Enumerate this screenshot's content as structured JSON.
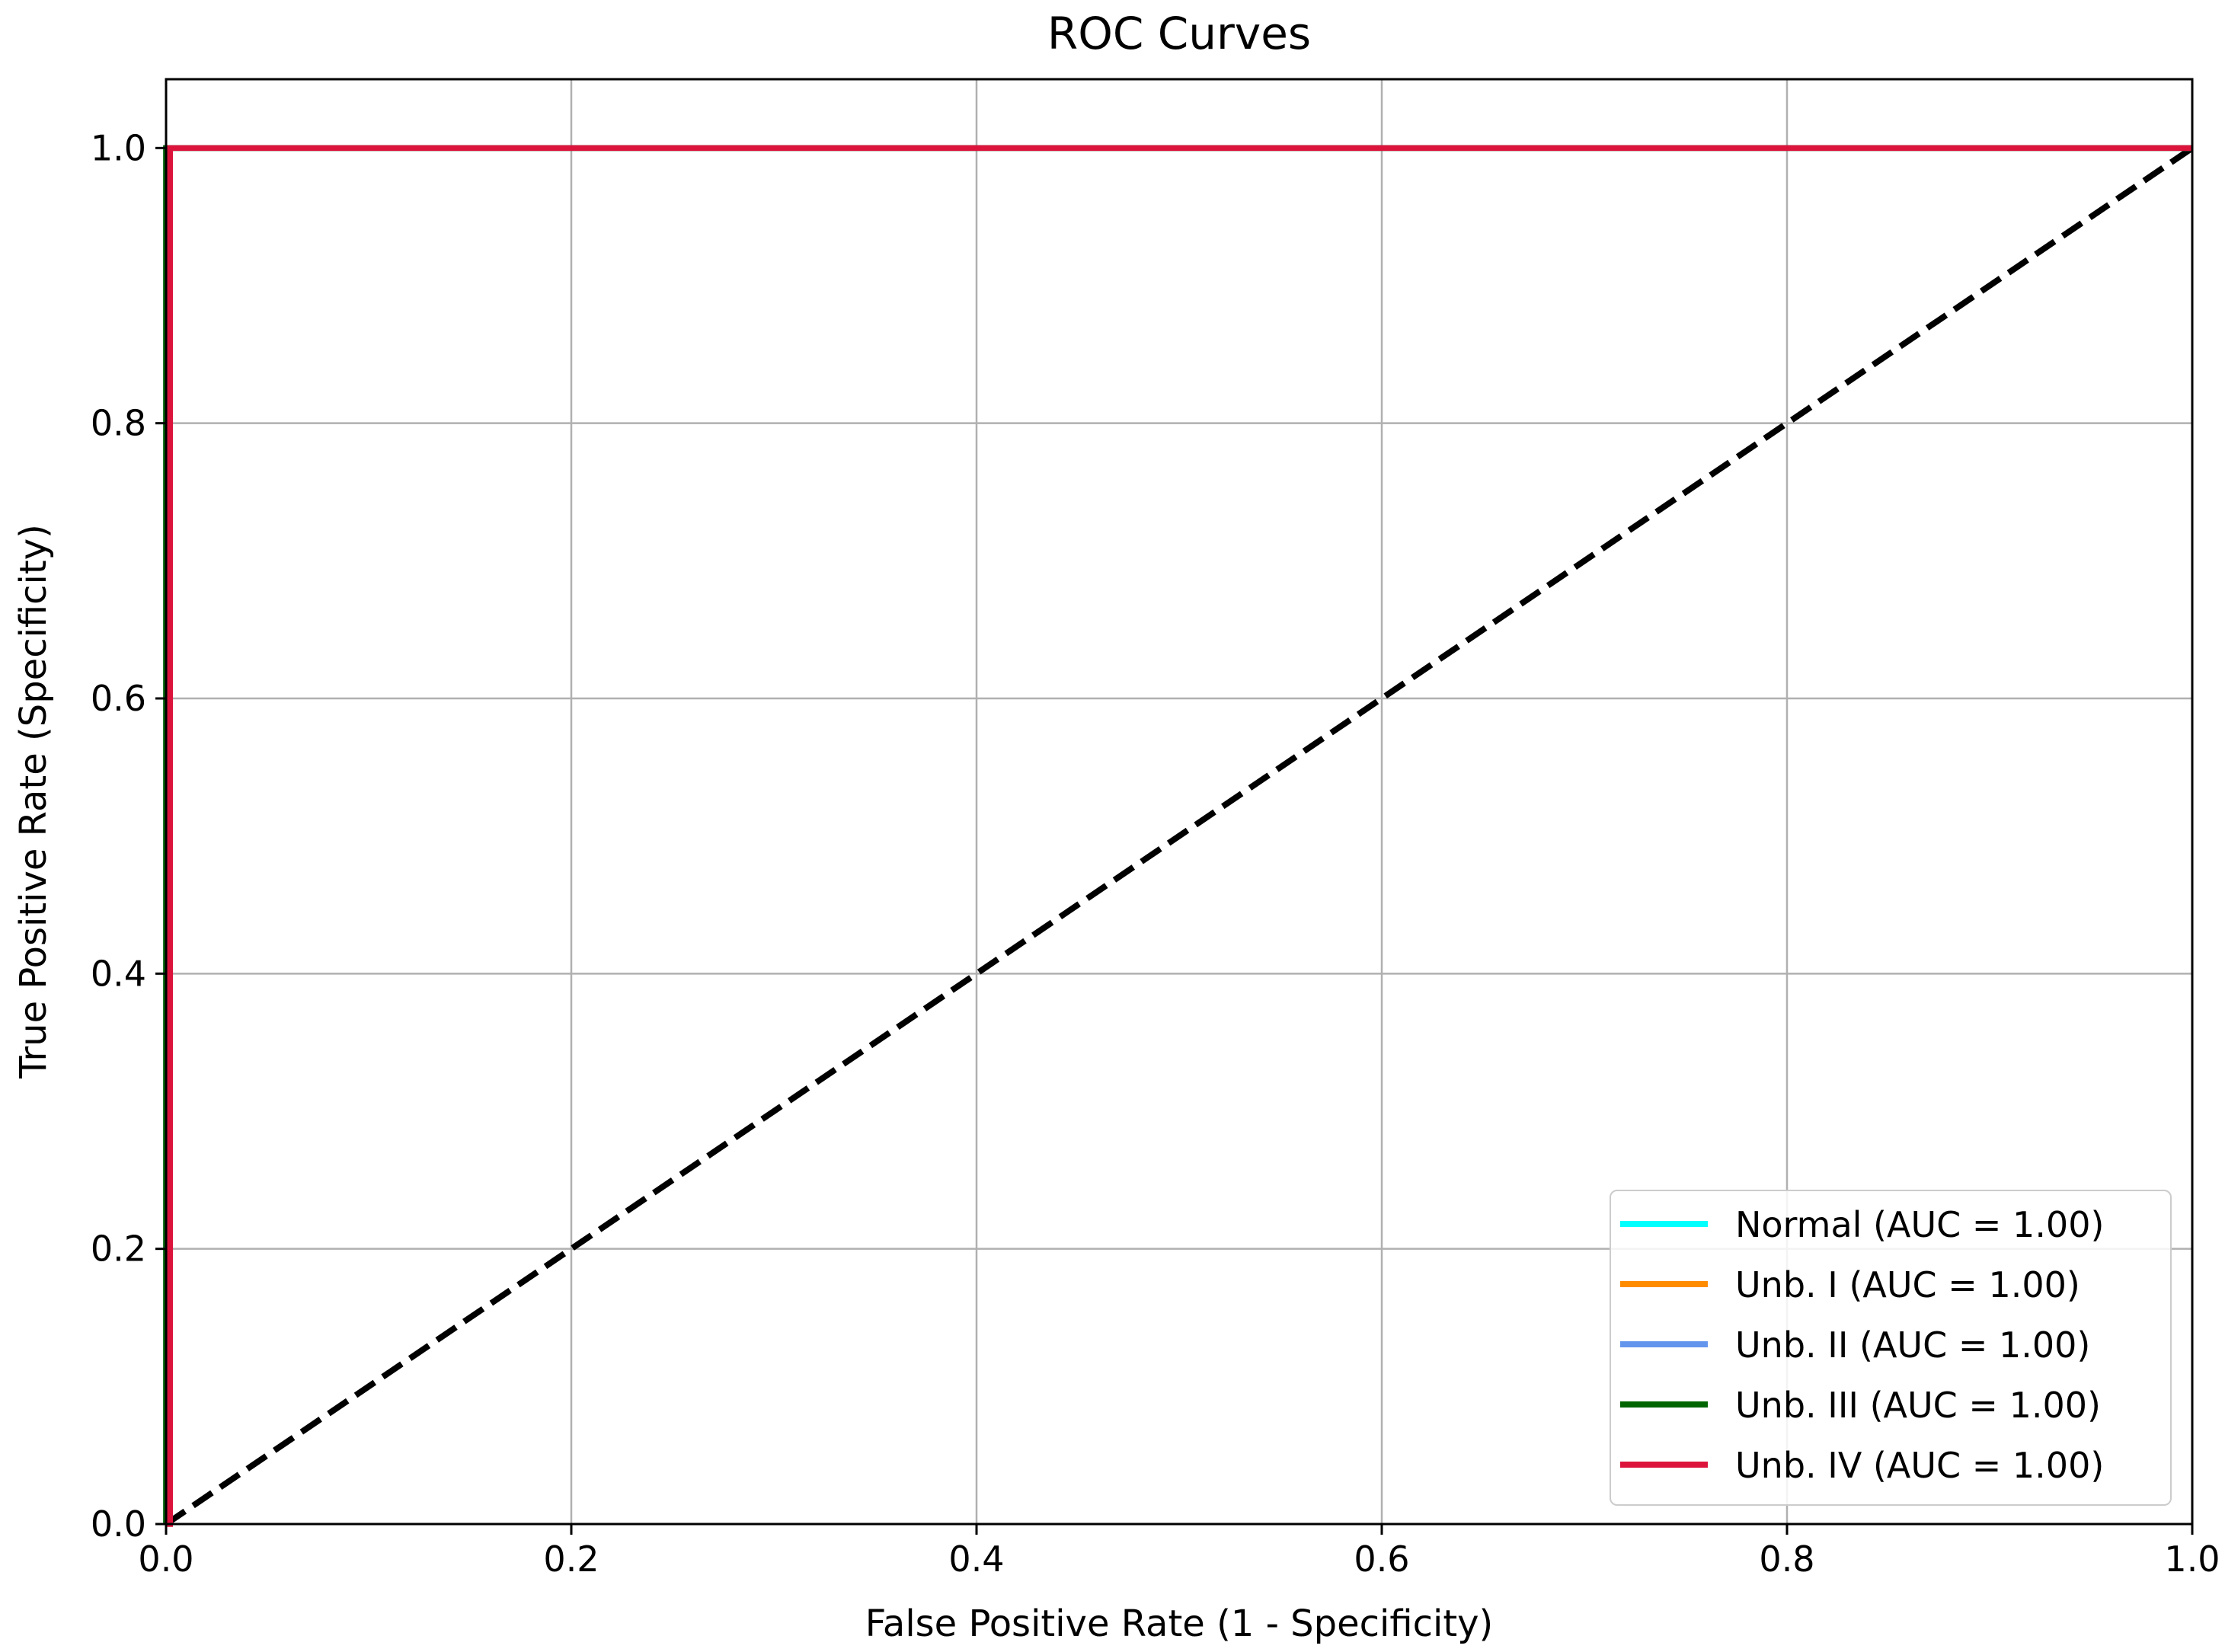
{
  "chart_data": {
    "type": "line",
    "title": "ROC Curves",
    "xlabel": "False Positive Rate (1 - Specificity)",
    "ylabel": "True Positive Rate (Specificity)",
    "xlim": [
      0.0,
      1.0
    ],
    "ylim": [
      0.0,
      1.05
    ],
    "xticks": [
      "0.0",
      "0.2",
      "0.4",
      "0.6",
      "0.8",
      "1.0"
    ],
    "yticks": [
      "0.0",
      "0.2",
      "0.4",
      "0.6",
      "0.8",
      "1.0"
    ],
    "grid": true,
    "legend_position": "lower-right",
    "series": [
      {
        "name": "Normal (AUC = 1.00)",
        "color": "#00ffff",
        "x": [
          0.0,
          0.0,
          1.0
        ],
        "y": [
          0.0,
          1.0,
          1.0
        ]
      },
      {
        "name": "Unb. I (AUC = 1.00)",
        "color": "#ff8c00",
        "x": [
          0.0,
          0.0,
          1.0
        ],
        "y": [
          0.0,
          1.0,
          1.0
        ]
      },
      {
        "name": "Unb. II (AUC = 1.00)",
        "color": "#6495ed",
        "x": [
          0.0,
          0.0,
          1.0
        ],
        "y": [
          0.0,
          1.0,
          1.0
        ]
      },
      {
        "name": "Unb. III (AUC = 1.00)",
        "color": "#006400",
        "x": [
          0.0,
          0.0,
          1.0
        ],
        "y": [
          0.0,
          1.0,
          1.0
        ]
      },
      {
        "name": "Unb. IV (AUC = 1.00)",
        "color": "#dc143c",
        "x": [
          0.0,
          0.002,
          0.002,
          1.0
        ],
        "y": [
          0.0,
          0.0,
          1.0,
          1.0
        ]
      }
    ],
    "reference_line": {
      "x": [
        0.0,
        1.0
      ],
      "y": [
        0.0,
        1.0
      ],
      "color": "#000000",
      "style": "dashed"
    }
  }
}
